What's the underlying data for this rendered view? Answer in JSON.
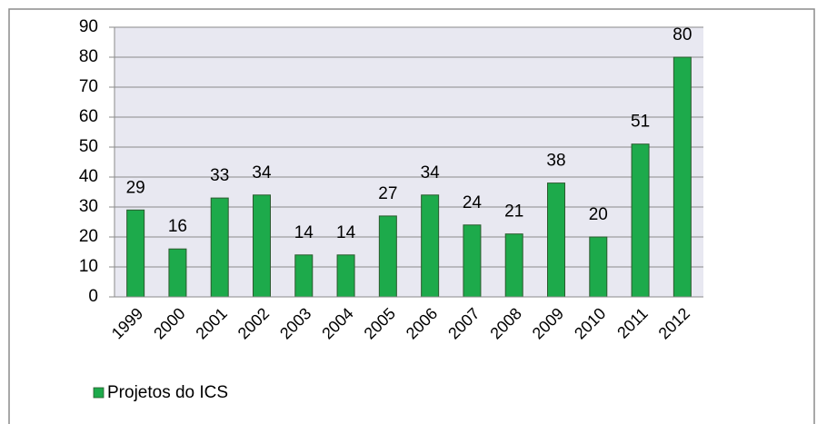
{
  "chart_data": {
    "type": "bar",
    "categories": [
      "1999",
      "2000",
      "2001",
      "2002",
      "2003",
      "2004",
      "2005",
      "2006",
      "2007",
      "2008",
      "2009",
      "2010",
      "2011",
      "2012"
    ],
    "series": [
      {
        "name": "Projetos do ICS",
        "color": "#1daa4b",
        "values": [
          29,
          16,
          33,
          34,
          14,
          14,
          27,
          34,
          24,
          21,
          38,
          20,
          51,
          80
        ]
      }
    ],
    "ylim": [
      0,
      90
    ],
    "yticks": [
      0,
      10,
      20,
      30,
      40,
      50,
      60,
      70,
      80,
      90
    ],
    "grid": true,
    "legend": "bottom-left"
  }
}
